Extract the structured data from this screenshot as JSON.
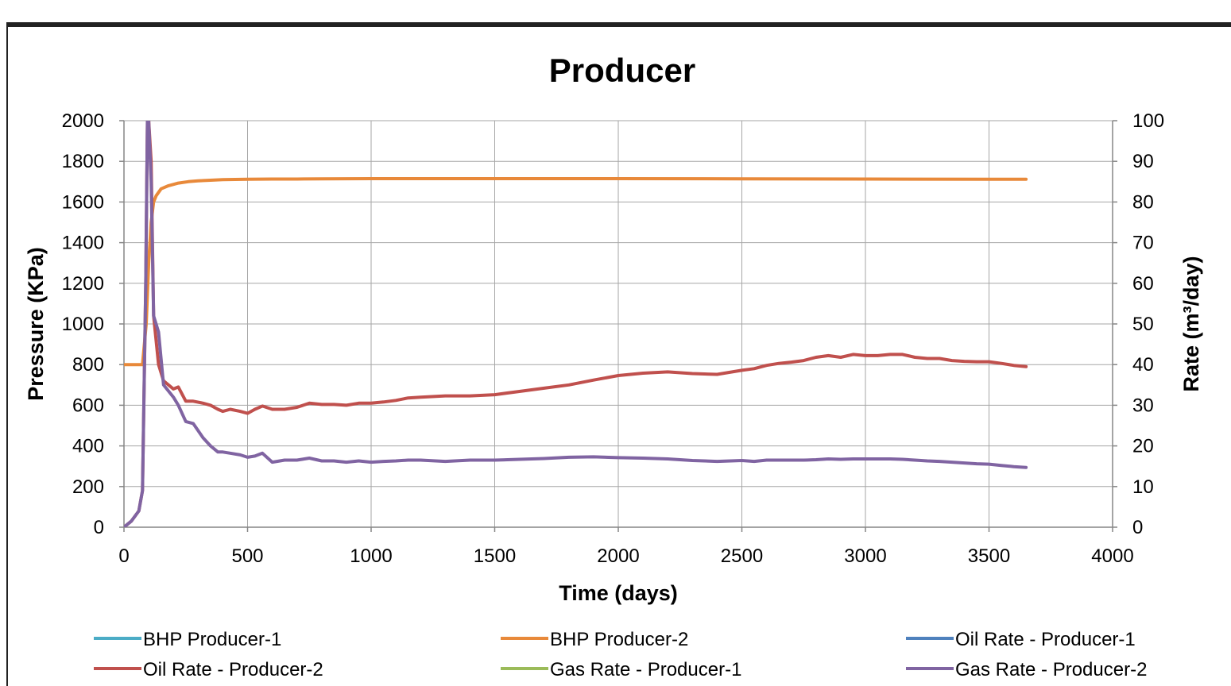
{
  "chart_data": {
    "type": "line",
    "title": "Producer",
    "xlabel": "Time (days)",
    "ylabel": "Pressure (KPa)",
    "y2label": "Rate (m³/day)",
    "xlim": [
      0,
      4000
    ],
    "ylim": [
      0,
      2000
    ],
    "y2lim": [
      0,
      100
    ],
    "xticks": [
      "0",
      "500",
      "1000",
      "1500",
      "2000",
      "2500",
      "3000",
      "3500",
      "4000"
    ],
    "yticks": [
      "0",
      "200",
      "400",
      "600",
      "800",
      "1000",
      "1200",
      "1400",
      "1600",
      "1800",
      "2000"
    ],
    "y2ticks": [
      "0",
      "10",
      "20",
      "30",
      "40",
      "50",
      "60",
      "70",
      "80",
      "90",
      "100"
    ],
    "grid": true,
    "legend_position": "bottom",
    "series": [
      {
        "name": "BHP Producer-1",
        "color": "#4bacc6",
        "axis": "left",
        "x": [],
        "y": []
      },
      {
        "name": "BHP Producer-2",
        "color": "#e8893a",
        "axis": "left",
        "x": [
          0,
          60,
          75,
          90,
          100,
          110,
          120,
          130,
          150,
          180,
          220,
          260,
          300,
          350,
          400,
          500,
          600,
          700,
          800,
          1000,
          1500,
          2000,
          2500,
          3000,
          3500,
          3650
        ],
        "y": [
          800,
          800,
          800,
          1000,
          1300,
          1500,
          1600,
          1630,
          1665,
          1680,
          1693,
          1700,
          1704,
          1707,
          1710,
          1712,
          1713,
          1713,
          1714,
          1715,
          1715,
          1715,
          1714,
          1713,
          1712,
          1712
        ]
      },
      {
        "name": "Oil Rate - Producer-1",
        "color": "#4f81bd",
        "axis": "right",
        "x": [],
        "y": []
      },
      {
        "name": "Oil Rate - Producer-2",
        "color": "#c0504d",
        "axis": "right",
        "x": [
          0,
          30,
          60,
          75,
          88,
          95,
          100,
          110,
          120,
          140,
          160,
          200,
          220,
          250,
          280,
          320,
          350,
          380,
          400,
          430,
          470,
          500,
          530,
          560,
          600,
          650,
          700,
          750,
          800,
          850,
          900,
          950,
          1000,
          1050,
          1100,
          1150,
          1200,
          1300,
          1400,
          1500,
          1600,
          1700,
          1800,
          1900,
          2000,
          2100,
          2200,
          2300,
          2400,
          2500,
          2550,
          2600,
          2650,
          2700,
          2750,
          2800,
          2850,
          2900,
          2950,
          3000,
          3050,
          3100,
          3150,
          3200,
          3250,
          3300,
          3350,
          3400,
          3450,
          3500,
          3550,
          3600,
          3650
        ],
        "y": [
          0,
          1.5,
          4,
          9,
          60,
          100,
          100,
          90,
          52,
          40,
          36,
          34,
          34.5,
          31,
          31,
          30.5,
          30,
          29,
          28.5,
          29,
          28.5,
          28,
          29,
          29.8,
          29,
          29,
          29.5,
          30.5,
          30.2,
          30.2,
          30,
          30.5,
          30.5,
          30.8,
          31.2,
          31.8,
          32,
          32.3,
          32.3,
          32.6,
          33.4,
          34.2,
          35,
          36.2,
          37.3,
          37.9,
          38.2,
          37.8,
          37.6,
          38.6,
          39,
          39.8,
          40.3,
          40.6,
          41,
          41.8,
          42.2,
          41.8,
          42.5,
          42.2,
          42.2,
          42.5,
          42.5,
          41.8,
          41.5,
          41.5,
          41,
          40.8,
          40.7,
          40.7,
          40.3,
          39.8,
          39.5
        ]
      },
      {
        "name": "Gas Rate - Producer-1",
        "color": "#9bbb59",
        "axis": "right",
        "x": [],
        "y": []
      },
      {
        "name": "Gas Rate - Producer-2",
        "color": "#8064a2",
        "axis": "right",
        "x": [
          0,
          30,
          60,
          75,
          88,
          95,
          100,
          110,
          120,
          140,
          160,
          200,
          220,
          250,
          280,
          320,
          350,
          380,
          400,
          430,
          470,
          500,
          530,
          560,
          600,
          650,
          700,
          750,
          800,
          850,
          900,
          950,
          1000,
          1050,
          1100,
          1150,
          1200,
          1300,
          1400,
          1500,
          1600,
          1700,
          1800,
          1900,
          2000,
          2100,
          2200,
          2300,
          2400,
          2500,
          2550,
          2600,
          2650,
          2700,
          2750,
          2800,
          2850,
          2900,
          2950,
          3000,
          3050,
          3100,
          3150,
          3200,
          3250,
          3300,
          3350,
          3400,
          3450,
          3500,
          3550,
          3600,
          3650
        ],
        "y": [
          0,
          1.5,
          4,
          9,
          60,
          100,
          100,
          85,
          52,
          48,
          35,
          32,
          30,
          26,
          25.5,
          22,
          20,
          18.5,
          18.5,
          18.2,
          17.8,
          17.2,
          17.5,
          18.2,
          16,
          16.5,
          16.5,
          17,
          16.3,
          16.3,
          16,
          16.3,
          16,
          16.2,
          16.3,
          16.5,
          16.5,
          16.2,
          16.5,
          16.5,
          16.7,
          16.9,
          17.2,
          17.3,
          17.1,
          17,
          16.8,
          16.4,
          16.2,
          16.4,
          16.2,
          16.5,
          16.5,
          16.5,
          16.5,
          16.6,
          16.8,
          16.7,
          16.8,
          16.8,
          16.8,
          16.8,
          16.7,
          16.5,
          16.3,
          16.2,
          16,
          15.8,
          15.6,
          15.5,
          15.2,
          14.9,
          14.7
        ]
      }
    ]
  }
}
